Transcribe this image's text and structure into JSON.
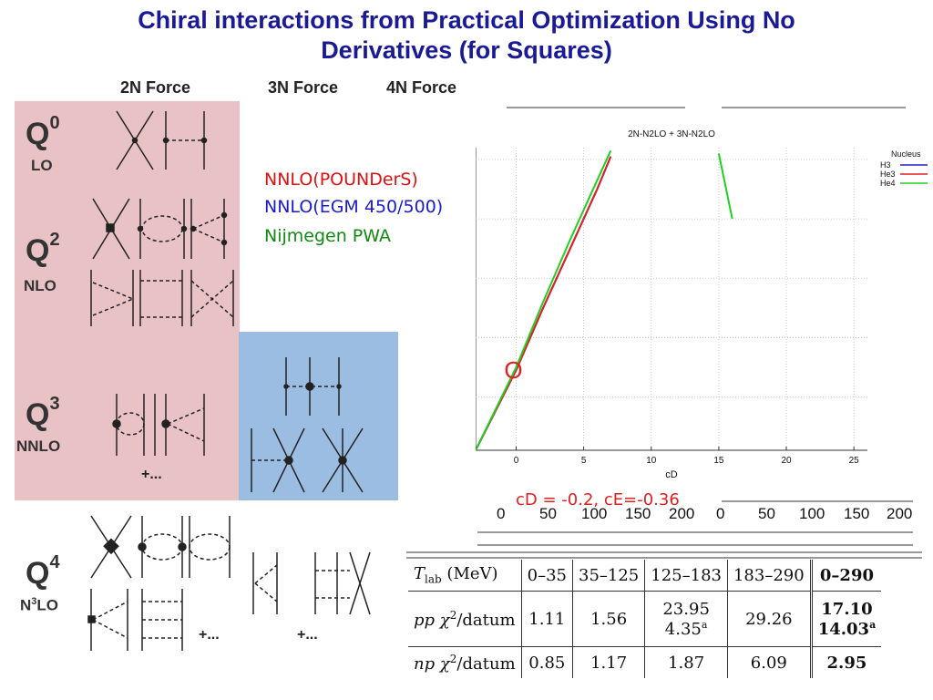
{
  "title": {
    "line1": "Chiral interactions from Practical Optimization Using No",
    "line2": "Derivatives (for Squares)"
  },
  "columns": {
    "two_n": "2N Force",
    "three_n": "3N Force",
    "four_n": "4N Force"
  },
  "orders": [
    {
      "q": "Q",
      "power": "0",
      "label": "LO"
    },
    {
      "q": "Q",
      "power": "2",
      "label": "NLO"
    },
    {
      "q": "Q",
      "power": "3",
      "label": "NNLO"
    },
    {
      "q": "Q",
      "power": "4",
      "label": "N",
      "label_sup": "3",
      "label_end": "LO"
    }
  ],
  "more": {
    "q3": "+...",
    "q4_a": "+...",
    "q4_b": "+..."
  },
  "legend": {
    "pounders": "NNLO(POUNDerS)",
    "egm": "NNLO(EGM 450/500)",
    "nijmegen": "Nijmegen PWA"
  },
  "colors": {
    "pounders": "#e01010",
    "egm": "#1a1ad0",
    "nijmegen": "#108a10",
    "title": "#1a1a96",
    "pink": "#e8c2c4",
    "blue": "#9cbde2"
  },
  "chart_data": {
    "type": "line",
    "title": "2N-N2LO + 3N-N2LO",
    "xlabel": "cD",
    "ylabel": "",
    "xlim": [
      -3,
      26
    ],
    "x_ticks": [
      0,
      5,
      10,
      15,
      20,
      25
    ],
    "grid": true,
    "legend_title": "Nucleus",
    "legend_position": "right",
    "series": [
      {
        "name": "H3",
        "color": "#2020c0",
        "x": [
          -3,
          0,
          2,
          4,
          6,
          7
        ],
        "y": [
          -0.9,
          0.45,
          1.5,
          2.5,
          3.5,
          4.05
        ]
      },
      {
        "name": "He3",
        "color": "#e02020",
        "x": [
          -3,
          0,
          2,
          4,
          6,
          7
        ],
        "y": [
          -0.9,
          0.45,
          1.5,
          2.5,
          3.5,
          4.05
        ]
      },
      {
        "name": "He4",
        "color": "#20d020",
        "x": [
          -3,
          0,
          2,
          4,
          6,
          7,
          15,
          16
        ],
        "y": [
          -0.9,
          0.5,
          1.6,
          2.65,
          3.65,
          4.15,
          4.1,
          3.0
        ]
      }
    ],
    "marker": {
      "label": "O",
      "x": -0.2
    }
  },
  "fit_note": "cD = -0.2, cE=-0.36",
  "lower_axis_ticks": [
    "0",
    "50",
    "100",
    "150",
    "200",
    "0",
    "50",
    "100",
    "150",
    "200"
  ],
  "table": {
    "rows": [
      {
        "label": "T_lab (MeV)",
        "cells": [
          "0–35",
          "35–125",
          "125–183",
          "183–290"
        ],
        "total": "0–290"
      },
      {
        "label": "pp χ²/datum",
        "cells": [
          "1.11",
          "1.56",
          "23.95",
          "29.26"
        ],
        "cell_extra": "4.35",
        "cell_extra_sup": "a",
        "total": "17.10",
        "total_extra": "14.03",
        "total_extra_sup": "a"
      },
      {
        "label": "np χ²/datum",
        "cells": [
          "0.85",
          "1.17",
          "1.87",
          "6.09"
        ],
        "total": "2.95"
      }
    ]
  }
}
